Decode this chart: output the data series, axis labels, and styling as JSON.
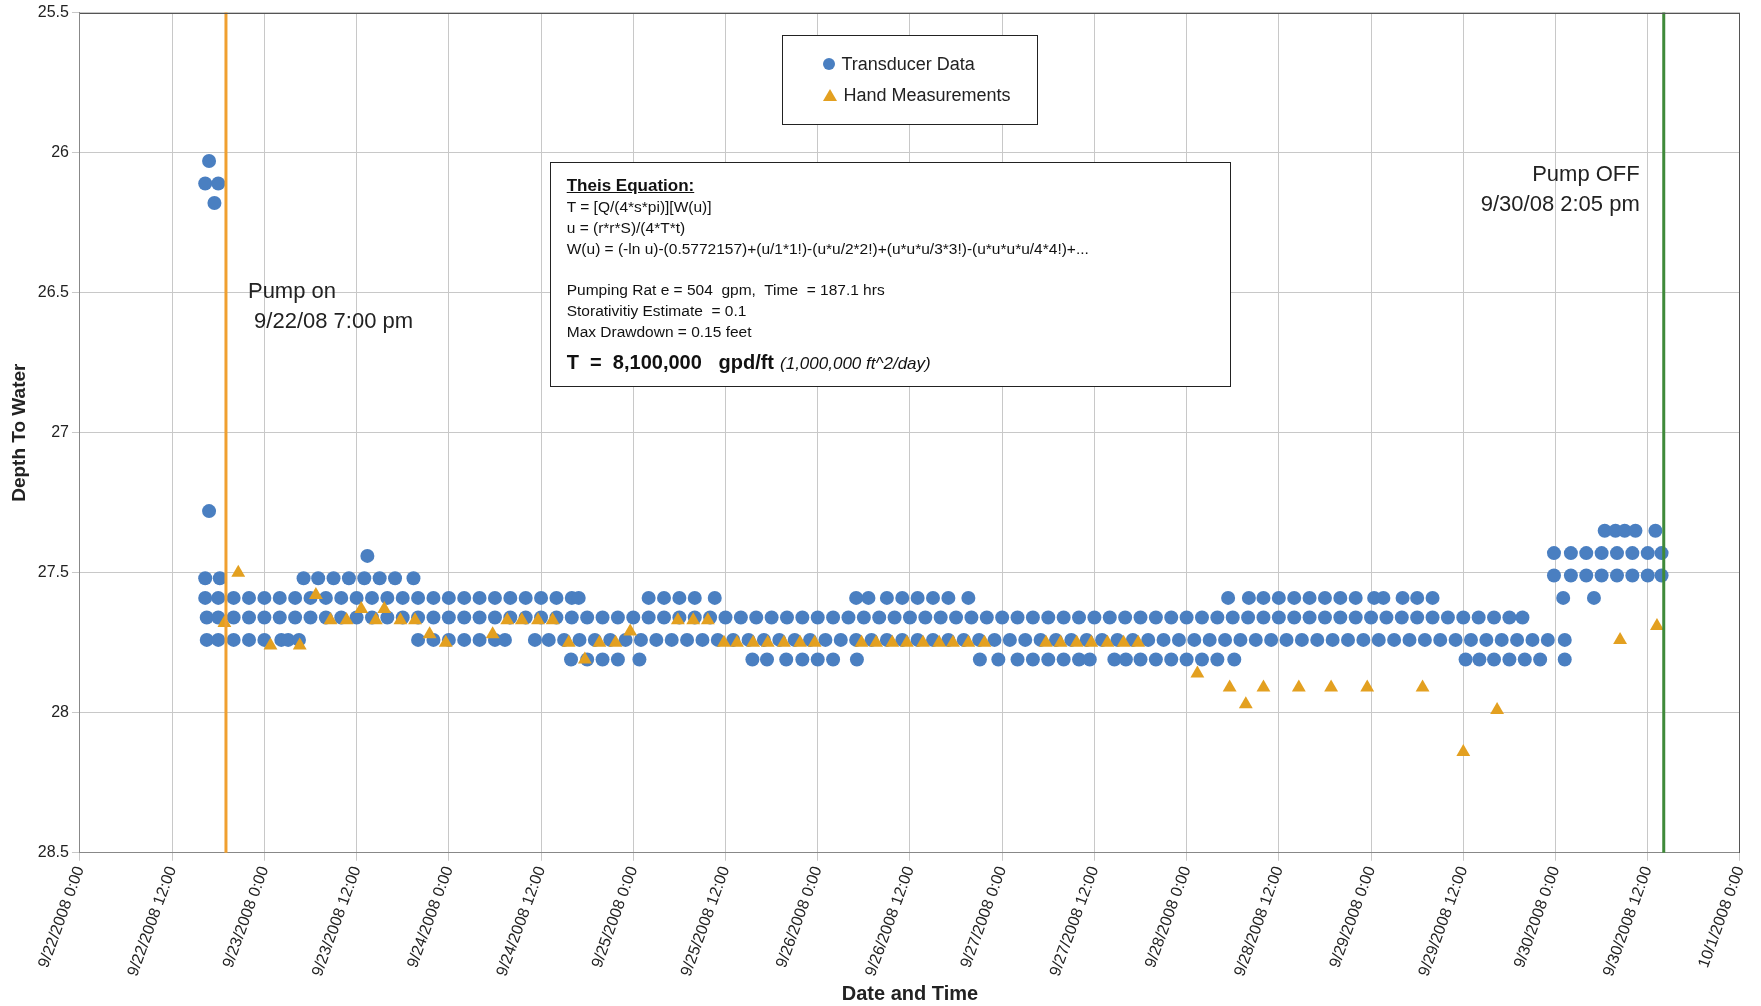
{
  "chart_data": {
    "type": "scatter",
    "xlabel": "Date and Time",
    "ylabel": "Depth To Water",
    "xlim": [
      "2008-09-22T00:00",
      "2008-10-01T00:00"
    ],
    "ylim": [
      28.5,
      25.5
    ],
    "xticks": [
      {
        "value": "2008-09-22T00:00",
        "label": "9/22/2008 0:00"
      },
      {
        "value": "2008-09-22T12:00",
        "label": "9/22/2008 12:00"
      },
      {
        "value": "2008-09-23T00:00",
        "label": "9/23/2008 0:00"
      },
      {
        "value": "2008-09-23T12:00",
        "label": "9/23/2008 12:00"
      },
      {
        "value": "2008-09-24T00:00",
        "label": "9/24/2008 0:00"
      },
      {
        "value": "2008-09-24T12:00",
        "label": "9/24/2008 12:00"
      },
      {
        "value": "2008-09-25T00:00",
        "label": "9/25/2008 0:00"
      },
      {
        "value": "2008-09-25T12:00",
        "label": "9/25/2008 12:00"
      },
      {
        "value": "2008-09-26T00:00",
        "label": "9/26/2008 0:00"
      },
      {
        "value": "2008-09-26T12:00",
        "label": "9/26/2008 12:00"
      },
      {
        "value": "2008-09-27T00:00",
        "label": "9/27/2008 0:00"
      },
      {
        "value": "2008-09-27T12:00",
        "label": "9/27/2008 12:00"
      },
      {
        "value": "2008-09-28T00:00",
        "label": "9/28/2008 0:00"
      },
      {
        "value": "2008-09-28T12:00",
        "label": "9/28/2008 12:00"
      },
      {
        "value": "2008-09-29T00:00",
        "label": "9/29/2008 0:00"
      },
      {
        "value": "2008-09-29T12:00",
        "label": "9/29/2008 12:00"
      },
      {
        "value": "2008-09-30T00:00",
        "label": "9/30/2008 0:00"
      },
      {
        "value": "2008-09-30T12:00",
        "label": "9/30/2008 12:00"
      },
      {
        "value": "2008-10-01T00:00",
        "label": "10/1/2008 0:00"
      }
    ],
    "yticks": [
      25.5,
      26,
      26.5,
      27,
      27.5,
      28,
      28.5
    ],
    "grid": true,
    "legend": "top",
    "series": [
      {
        "name": "Transducer Data",
        "color": "#4a7fc1",
        "marker": "circle",
        "x": [
          "2008-09-22T16:48",
          "2008-09-22T16:18",
          "2008-09-22T18:00",
          "2008-09-22T17:30",
          "2008-09-22T16:48",
          "2008-09-23T13:24",
          "2008-09-22T16:18",
          "2008-09-22T18:12",
          "2008-09-23T05:06",
          "2008-09-23T07:00",
          "2008-09-23T09:00",
          "2008-09-23T11:00",
          "2008-09-23T13:00",
          "2008-09-23T15:00",
          "2008-09-23T17:00",
          "2008-09-23T19:24",
          "2008-09-22T16:18",
          "2008-09-22T18:00",
          "2008-09-22T20:00",
          "2008-09-22T22:00",
          "2008-09-23T00:00",
          "2008-09-23T02:00",
          "2008-09-23T04:00",
          "2008-09-23T06:00",
          "2008-09-23T08:00",
          "2008-09-23T10:00",
          "2008-09-23T12:00",
          "2008-09-23T14:00",
          "2008-09-23T16:00",
          "2008-09-23T18:00",
          "2008-09-23T20:00",
          "2008-09-23T22:00",
          "2008-09-24T00:00",
          "2008-09-24T02:00",
          "2008-09-24T04:00",
          "2008-09-24T06:00",
          "2008-09-24T08:00",
          "2008-09-24T10:00",
          "2008-09-24T12:00",
          "2008-09-24T14:00",
          "2008-09-24T16:00",
          "2008-09-24T16:54",
          "2008-09-25T02:00",
          "2008-09-25T04:00",
          "2008-09-25T06:00",
          "2008-09-25T08:00",
          "2008-09-25T10:36",
          "2008-09-26T05:00",
          "2008-09-26T06:36",
          "2008-09-26T09:00",
          "2008-09-26T11:00",
          "2008-09-26T13:00",
          "2008-09-26T15:00",
          "2008-09-26T17:00",
          "2008-09-26T19:36",
          "2008-09-28T05:24",
          "2008-09-28T08:06",
          "2008-09-28T10:00",
          "2008-09-28T12:00",
          "2008-09-28T14:00",
          "2008-09-28T16:00",
          "2008-09-28T18:00",
          "2008-09-28T20:00",
          "2008-09-28T22:00",
          "2008-09-29T00:24",
          "2008-09-29T01:36",
          "2008-09-29T04:06",
          "2008-09-29T06:00",
          "2008-09-29T08:00",
          "2008-09-30T01:00",
          "2008-09-30T05:00",
          "2008-09-22T16:30",
          "2008-09-22T18:00",
          "2008-09-22T20:00",
          "2008-09-22T22:00",
          "2008-09-23T00:00",
          "2008-09-23T02:00",
          "2008-09-23T04:00",
          "2008-09-23T06:00",
          "2008-09-23T08:00",
          "2008-09-23T10:00",
          "2008-09-23T12:00",
          "2008-09-23T14:00",
          "2008-09-23T16:00",
          "2008-09-23T18:00",
          "2008-09-23T20:00",
          "2008-09-23T22:00",
          "2008-09-24T00:00",
          "2008-09-24T02:00",
          "2008-09-24T04:00",
          "2008-09-24T06:00",
          "2008-09-24T08:00",
          "2008-09-24T10:00",
          "2008-09-24T12:00",
          "2008-09-24T14:00",
          "2008-09-24T16:00",
          "2008-09-24T18:00",
          "2008-09-24T20:00",
          "2008-09-24T22:00",
          "2008-09-25T00:00",
          "2008-09-25T02:00",
          "2008-09-25T04:00",
          "2008-09-25T06:00",
          "2008-09-25T08:00",
          "2008-09-25T10:00",
          "2008-09-25T12:00",
          "2008-09-25T14:00",
          "2008-09-25T16:00",
          "2008-09-25T18:00",
          "2008-09-25T20:00",
          "2008-09-25T22:00",
          "2008-09-26T00:00",
          "2008-09-26T02:00",
          "2008-09-26T04:00",
          "2008-09-26T06:00",
          "2008-09-26T08:00",
          "2008-09-26T10:00",
          "2008-09-26T12:00",
          "2008-09-26T14:00",
          "2008-09-26T16:00",
          "2008-09-26T18:00",
          "2008-09-26T20:00",
          "2008-09-26T22:00",
          "2008-09-27T00:00",
          "2008-09-27T02:00",
          "2008-09-27T04:00",
          "2008-09-27T06:00",
          "2008-09-27T08:00",
          "2008-09-27T10:00",
          "2008-09-27T12:00",
          "2008-09-27T14:00",
          "2008-09-27T16:00",
          "2008-09-27T18:00",
          "2008-09-27T20:00",
          "2008-09-27T22:00",
          "2008-09-28T00:00",
          "2008-09-28T02:00",
          "2008-09-28T04:00",
          "2008-09-28T06:00",
          "2008-09-28T08:00",
          "2008-09-28T10:00",
          "2008-09-28T12:00",
          "2008-09-28T14:00",
          "2008-09-28T16:00",
          "2008-09-28T18:00",
          "2008-09-28T20:00",
          "2008-09-28T22:00",
          "2008-09-29T00:00",
          "2008-09-29T02:00",
          "2008-09-29T04:00",
          "2008-09-29T06:00",
          "2008-09-29T08:00",
          "2008-09-29T10:00",
          "2008-09-29T12:00",
          "2008-09-29T14:00",
          "2008-09-29T16:00",
          "2008-09-29T18:00",
          "2008-09-29T19:42",
          "2008-09-22T16:30",
          "2008-09-22T18:00",
          "2008-09-22T20:00",
          "2008-09-22T22:00",
          "2008-09-23T00:00",
          "2008-09-23T02:12",
          "2008-09-23T03:06",
          "2008-09-23T04:30",
          "2008-09-23T20:00",
          "2008-09-23T22:00",
          "2008-09-24T00:00",
          "2008-09-24T02:00",
          "2008-09-24T04:00",
          "2008-09-24T06:00",
          "2008-09-24T07:18",
          "2008-09-24T11:12",
          "2008-09-24T13:00",
          "2008-09-24T15:00",
          "2008-09-24T17:00",
          "2008-09-24T19:00",
          "2008-09-24T21:00",
          "2008-09-24T23:00",
          "2008-09-25T01:00",
          "2008-09-25T03:00",
          "2008-09-25T05:00",
          "2008-09-25T07:00",
          "2008-09-25T09:00",
          "2008-09-25T11:00",
          "2008-09-25T13:00",
          "2008-09-25T15:00",
          "2008-09-25T17:00",
          "2008-09-25T19:00",
          "2008-09-25T21:00",
          "2008-09-25T23:00",
          "2008-09-26T01:00",
          "2008-09-26T03:00",
          "2008-09-26T05:00",
          "2008-09-26T07:00",
          "2008-09-26T09:00",
          "2008-09-26T11:00",
          "2008-09-26T13:00",
          "2008-09-26T15:00",
          "2008-09-26T17:00",
          "2008-09-26T19:00",
          "2008-09-26T21:00",
          "2008-09-26T23:00",
          "2008-09-27T01:00",
          "2008-09-27T03:00",
          "2008-09-27T05:00",
          "2008-09-27T07:00",
          "2008-09-27T09:00",
          "2008-09-27T11:00",
          "2008-09-27T13:00",
          "2008-09-27T15:00",
          "2008-09-27T17:00",
          "2008-09-27T19:00",
          "2008-09-27T21:00",
          "2008-09-27T23:00",
          "2008-09-28T01:00",
          "2008-09-28T03:00",
          "2008-09-28T05:00",
          "2008-09-28T07:00",
          "2008-09-28T09:00",
          "2008-09-28T11:00",
          "2008-09-28T13:00",
          "2008-09-28T15:00",
          "2008-09-28T17:00",
          "2008-09-28T19:00",
          "2008-09-28T21:00",
          "2008-09-28T23:00",
          "2008-09-29T01:00",
          "2008-09-29T03:00",
          "2008-09-29T05:00",
          "2008-09-29T07:00",
          "2008-09-29T09:00",
          "2008-09-29T11:00",
          "2008-09-29T13:00",
          "2008-09-29T15:00",
          "2008-09-29T17:00",
          "2008-09-29T19:00",
          "2008-09-29T21:00",
          "2008-09-29T23:00",
          "2008-09-30T01:12",
          "2008-09-24T15:54",
          "2008-09-24T18:00",
          "2008-09-24T20:00",
          "2008-09-24T22:00",
          "2008-09-25T00:48",
          "2008-09-25T15:30",
          "2008-09-25T17:24",
          "2008-09-25T19:54",
          "2008-09-25T22:00",
          "2008-09-26T00:00",
          "2008-09-26T02:00",
          "2008-09-26T05:06",
          "2008-09-26T21:06",
          "2008-09-26T23:30",
          "2008-09-27T02:00",
          "2008-09-27T04:00",
          "2008-09-27T06:00",
          "2008-09-27T08:00",
          "2008-09-27T10:00",
          "2008-09-27T11:24",
          "2008-09-27T14:36",
          "2008-09-27T16:06",
          "2008-09-27T18:00",
          "2008-09-27T20:00",
          "2008-09-27T22:00",
          "2008-09-28T00:00",
          "2008-09-28T02:00",
          "2008-09-28T04:00",
          "2008-09-28T06:12",
          "2008-09-29T12:18",
          "2008-09-29T14:06",
          "2008-09-29T16:00",
          "2008-09-29T18:00",
          "2008-09-29T20:00",
          "2008-09-29T22:00",
          "2008-09-30T01:12",
          "2008-09-29T23:48",
          "2008-09-30T02:00",
          "2008-09-30T04:00",
          "2008-09-30T06:00",
          "2008-09-30T08:00",
          "2008-09-30T10:00",
          "2008-09-30T12:00",
          "2008-09-30T13:48",
          "2008-09-29T23:48",
          "2008-09-30T02:00",
          "2008-09-30T04:00",
          "2008-09-30T06:00",
          "2008-09-30T08:00",
          "2008-09-30T10:00",
          "2008-09-30T12:00",
          "2008-09-30T13:48",
          "2008-09-30T06:24",
          "2008-09-30T07:48",
          "2008-09-30T09:00",
          "2008-09-30T10:24",
          "2008-09-30T13:00"
        ],
        "values": [
          26.03,
          26.11,
          26.11,
          26.18,
          27.28,
          27.44,
          27.52,
          27.52,
          27.52,
          27.52,
          27.52,
          27.52,
          27.52,
          27.52,
          27.52,
          27.52,
          27.59,
          27.59,
          27.59,
          27.59,
          27.59,
          27.59,
          27.59,
          27.59,
          27.59,
          27.59,
          27.59,
          27.59,
          27.59,
          27.59,
          27.59,
          27.59,
          27.59,
          27.59,
          27.59,
          27.59,
          27.59,
          27.59,
          27.59,
          27.59,
          27.59,
          27.59,
          27.59,
          27.59,
          27.59,
          27.59,
          27.59,
          27.59,
          27.59,
          27.59,
          27.59,
          27.59,
          27.59,
          27.59,
          27.59,
          27.59,
          27.59,
          27.59,
          27.59,
          27.59,
          27.59,
          27.59,
          27.59,
          27.59,
          27.59,
          27.59,
          27.59,
          27.59,
          27.59,
          27.59,
          27.59,
          27.66,
          27.66,
          27.66,
          27.66,
          27.66,
          27.66,
          27.66,
          27.66,
          27.66,
          27.66,
          27.66,
          27.66,
          27.66,
          27.66,
          27.66,
          27.66,
          27.66,
          27.66,
          27.66,
          27.66,
          27.66,
          27.66,
          27.66,
          27.66,
          27.66,
          27.66,
          27.66,
          27.66,
          27.66,
          27.66,
          27.66,
          27.66,
          27.66,
          27.66,
          27.66,
          27.66,
          27.66,
          27.66,
          27.66,
          27.66,
          27.66,
          27.66,
          27.66,
          27.66,
          27.66,
          27.66,
          27.66,
          27.66,
          27.66,
          27.66,
          27.66,
          27.66,
          27.66,
          27.66,
          27.66,
          27.66,
          27.66,
          27.66,
          27.66,
          27.66,
          27.66,
          27.66,
          27.66,
          27.66,
          27.66,
          27.66,
          27.66,
          27.66,
          27.66,
          27.66,
          27.66,
          27.66,
          27.66,
          27.66,
          27.66,
          27.66,
          27.66,
          27.66,
          27.66,
          27.66,
          27.66,
          27.66,
          27.66,
          27.66,
          27.66,
          27.66,
          27.66,
          27.74,
          27.74,
          27.74,
          27.74,
          27.74,
          27.74,
          27.74,
          27.74,
          27.74,
          27.74,
          27.74,
          27.74,
          27.74,
          27.74,
          27.74,
          27.74,
          27.74,
          27.74,
          27.74,
          27.74,
          27.74,
          27.74,
          27.74,
          27.74,
          27.74,
          27.74,
          27.74,
          27.74,
          27.74,
          27.74,
          27.74,
          27.74,
          27.74,
          27.74,
          27.74,
          27.74,
          27.74,
          27.74,
          27.74,
          27.74,
          27.74,
          27.74,
          27.74,
          27.74,
          27.74,
          27.74,
          27.74,
          27.74,
          27.74,
          27.74,
          27.74,
          27.74,
          27.74,
          27.74,
          27.74,
          27.74,
          27.74,
          27.74,
          27.74,
          27.74,
          27.74,
          27.74,
          27.74,
          27.74,
          27.74,
          27.74,
          27.74,
          27.74,
          27.74,
          27.74,
          27.74,
          27.74,
          27.74,
          27.74,
          27.74,
          27.74,
          27.74,
          27.74,
          27.74,
          27.74,
          27.74,
          27.74,
          27.74,
          27.81,
          27.81,
          27.81,
          27.81,
          27.81,
          27.81,
          27.81,
          27.81,
          27.81,
          27.81,
          27.81,
          27.81,
          27.81,
          27.81,
          27.81,
          27.81,
          27.81,
          27.81,
          27.81,
          27.81,
          27.81,
          27.81,
          27.81,
          27.81,
          27.81,
          27.81,
          27.81,
          27.81,
          27.81,
          27.81,
          27.81,
          27.81,
          27.81,
          27.81,
          27.81,
          27.81,
          27.43,
          27.43,
          27.43,
          27.43,
          27.43,
          27.43,
          27.43,
          27.43,
          27.51,
          27.51,
          27.51,
          27.51,
          27.51,
          27.51,
          27.51,
          27.51,
          27.35,
          27.35,
          27.35,
          27.35,
          27.35
        ]
      },
      {
        "name": "Hand Measurements",
        "color": "#e3a020",
        "marker": "triangle",
        "x": [
          "2008-09-22T20:36",
          "2008-09-22T18:48",
          "2008-09-23T00:48",
          "2008-09-23T04:36",
          "2008-09-23T06:42",
          "2008-09-23T08:36",
          "2008-09-23T10:42",
          "2008-09-23T12:36",
          "2008-09-23T14:30",
          "2008-09-23T15:36",
          "2008-09-23T17:42",
          "2008-09-23T19:36",
          "2008-09-23T21:30",
          "2008-09-23T23:36",
          "2008-09-24T05:42",
          "2008-09-24T07:36",
          "2008-09-24T09:30",
          "2008-09-24T11:36",
          "2008-09-24T13:30",
          "2008-09-24T15:36",
          "2008-09-24T17:42",
          "2008-09-24T19:36",
          "2008-09-24T21:42",
          "2008-09-24T23:36",
          "2008-09-25T05:48",
          "2008-09-25T07:48",
          "2008-09-25T09:42",
          "2008-09-25T11:48",
          "2008-09-25T13:30",
          "2008-09-25T15:36",
          "2008-09-25T17:30",
          "2008-09-25T19:36",
          "2008-09-25T21:42",
          "2008-09-25T23:36",
          "2008-09-26T05:42",
          "2008-09-26T07:36",
          "2008-09-26T09:42",
          "2008-09-26T11:36",
          "2008-09-26T13:42",
          "2008-09-26T15:48",
          "2008-09-26T17:36",
          "2008-09-26T19:36",
          "2008-09-26T21:42",
          "2008-09-27T05:42",
          "2008-09-27T07:36",
          "2008-09-27T09:42",
          "2008-09-27T11:36",
          "2008-09-27T13:42",
          "2008-09-27T15:48",
          "2008-09-27T17:42",
          "2008-09-28T01:24",
          "2008-09-28T05:36",
          "2008-09-28T07:42",
          "2008-09-28T10:00",
          "2008-09-28T14:36",
          "2008-09-28T18:48",
          "2008-09-28T23:30",
          "2008-09-29T06:42",
          "2008-09-29T12:00",
          "2008-09-29T16:24",
          "2008-09-30T08:24",
          "2008-09-30T13:12"
        ],
        "values": [
          27.5,
          27.68,
          27.76,
          27.76,
          27.58,
          27.67,
          27.67,
          27.63,
          27.67,
          27.63,
          27.67,
          27.67,
          27.72,
          27.75,
          27.72,
          27.67,
          27.67,
          27.67,
          27.67,
          27.75,
          27.81,
          27.75,
          27.75,
          27.71,
          27.67,
          27.67,
          27.67,
          27.75,
          27.75,
          27.75,
          27.75,
          27.75,
          27.75,
          27.75,
          27.75,
          27.75,
          27.75,
          27.75,
          27.75,
          27.75,
          27.75,
          27.75,
          27.75,
          27.75,
          27.75,
          27.75,
          27.75,
          27.75,
          27.75,
          27.75,
          27.86,
          27.91,
          27.97,
          27.91,
          27.91,
          27.91,
          27.91,
          27.91,
          28.14,
          27.99,
          27.74,
          27.69
        ]
      }
    ],
    "ref_lines": [
      {
        "axis": "x",
        "value": "2008-09-22T19:00",
        "label": "Pump on\n 9/22/08 7:00 pm",
        "color": "#f0a030"
      },
      {
        "axis": "x",
        "value": "2008-09-30T14:05",
        "label": "Pump OFF\n9/30/08 2:05 pm",
        "color": "#3f8a3a"
      }
    ],
    "annotations": [
      "Theis Equation:",
      "T = [Q/(4*s*pi)][W(u)]",
      "u = (r*r*S)/(4*T*t)",
      "W(u) = (-ln u)-(0.5772157)+(u/1*1!)-(u*u/2*2!)+(u*u*u/3*3!)-(u*u*u*u/4*4!)+...",
      "Pumping Rat e = 504  gpm,  Time  = 187.1 hrs",
      "Storativitiy Estimate  = 0.1",
      "Max Drawdown = 0.15 feet",
      "T  =  8,100,000   gpd/ft",
      "(1,000,000 ft^2/day)"
    ]
  }
}
